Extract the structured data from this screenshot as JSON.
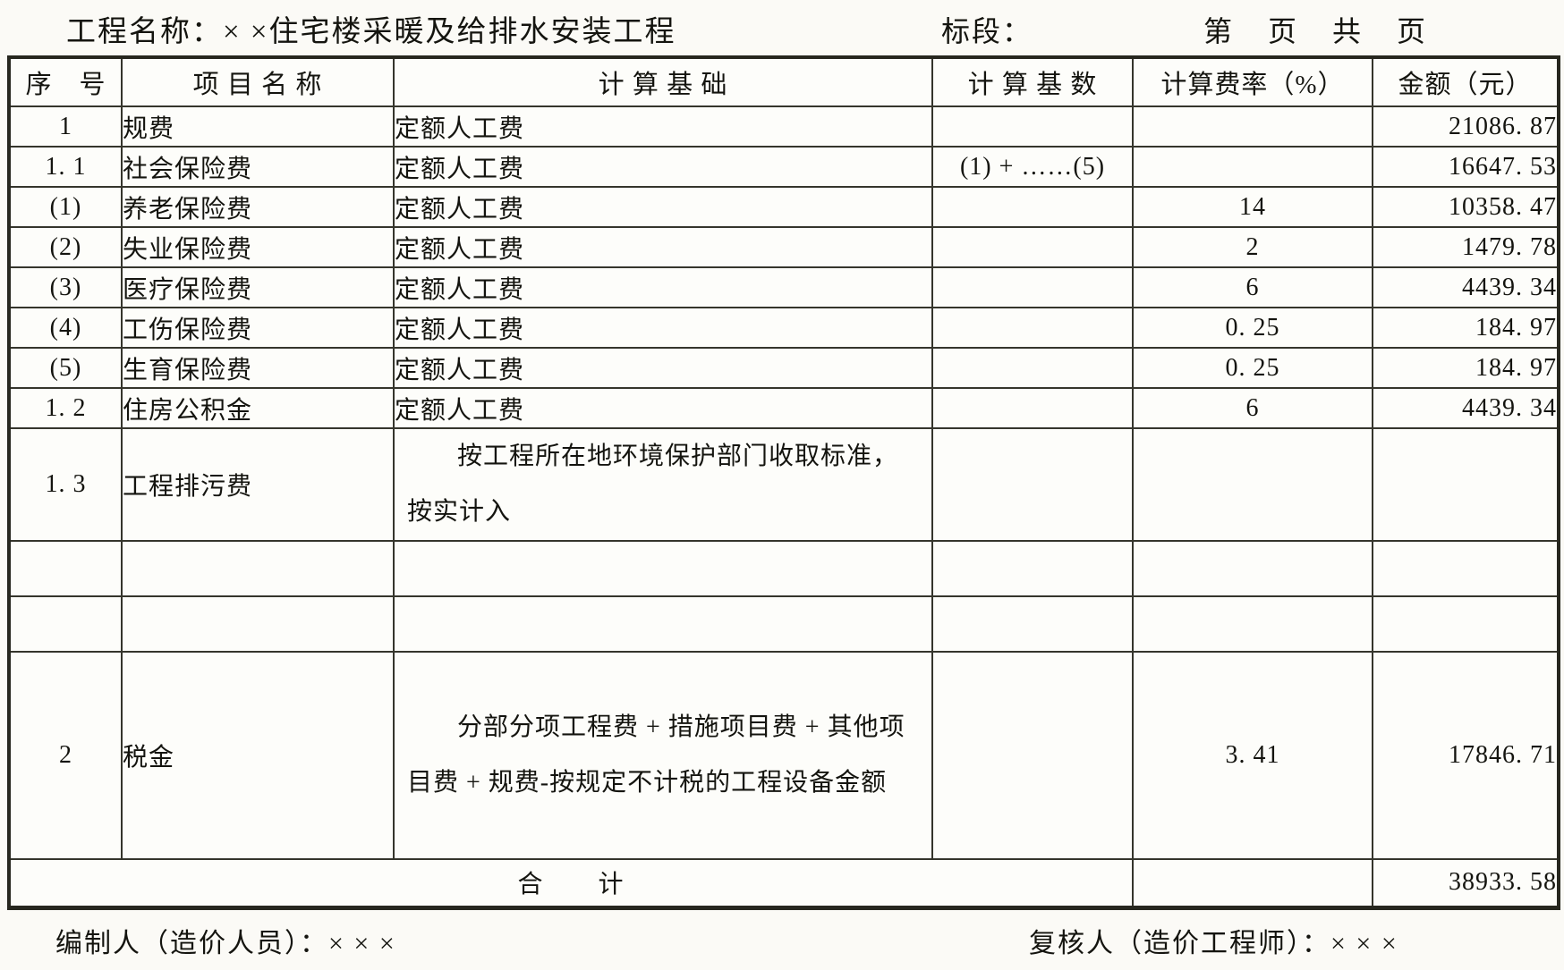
{
  "page_header": {
    "project_label": "工程名称：",
    "project_value": "× ×住宅楼采暖及给排水安装工程",
    "bid_section_label": "标段：",
    "page_info": "第　页　共　页"
  },
  "table": {
    "headers": [
      "序　号",
      "项 目 名 称",
      "计 算 基 础",
      "计 算 基 数",
      "计算费率（%）",
      "金额（元）"
    ],
    "rows": [
      {
        "no": "1",
        "name": "规费",
        "basis": "定额人工费",
        "base": "",
        "rate": "",
        "amount": "21086. 87"
      },
      {
        "no": "1. 1",
        "name": "社会保险费",
        "basis": "定额人工费",
        "base": "(1) + ……(5)",
        "rate": "",
        "amount": "16647. 53"
      },
      {
        "no": "(1)",
        "name": "养老保险费",
        "basis": "定额人工费",
        "base": "",
        "rate": "14",
        "amount": "10358. 47"
      },
      {
        "no": "(2)",
        "name": "失业保险费",
        "basis": "定额人工费",
        "base": "",
        "rate": "2",
        "amount": "1479. 78"
      },
      {
        "no": "(3)",
        "name": "医疗保险费",
        "basis": "定额人工费",
        "base": "",
        "rate": "6",
        "amount": "4439. 34"
      },
      {
        "no": "(4)",
        "name": "工伤保险费",
        "basis": "定额人工费",
        "base": "",
        "rate": "0. 25",
        "amount": "184. 97"
      },
      {
        "no": "(5)",
        "name": "生育保险费",
        "basis": "定额人工费",
        "base": "",
        "rate": "0. 25",
        "amount": "184. 97"
      },
      {
        "no": "1. 2",
        "name": "住房公积金",
        "basis": "定额人工费",
        "base": "",
        "rate": "6",
        "amount": "4439. 34"
      },
      {
        "no": "1. 3",
        "name": "工程排污费",
        "basis": "按工程所在地环境保护部门收取标准，按实计入",
        "base": "",
        "rate": "",
        "amount": ""
      },
      {
        "no": "",
        "name": "",
        "basis": "",
        "base": "",
        "rate": "",
        "amount": ""
      },
      {
        "no": "",
        "name": "",
        "basis": "",
        "base": "",
        "rate": "",
        "amount": ""
      },
      {
        "no": "2",
        "name": "税金",
        "basis": "分部分项工程费 + 措施项目费 + 其他项目费 + 规费-按规定不计税的工程设备金额",
        "base": "",
        "rate": "3. 41",
        "amount": "17846. 71"
      }
    ],
    "total_row": {
      "label": "合　　计",
      "rate": "",
      "amount": "38933. 58"
    }
  },
  "footer": {
    "preparer": "编制人（造价人员）：× × ×",
    "reviewer": "复核人（造价工程师）：× × ×"
  },
  "colors": {
    "paper": "#fbfaf6",
    "ink": "#14140f",
    "border": "#35352c"
  }
}
